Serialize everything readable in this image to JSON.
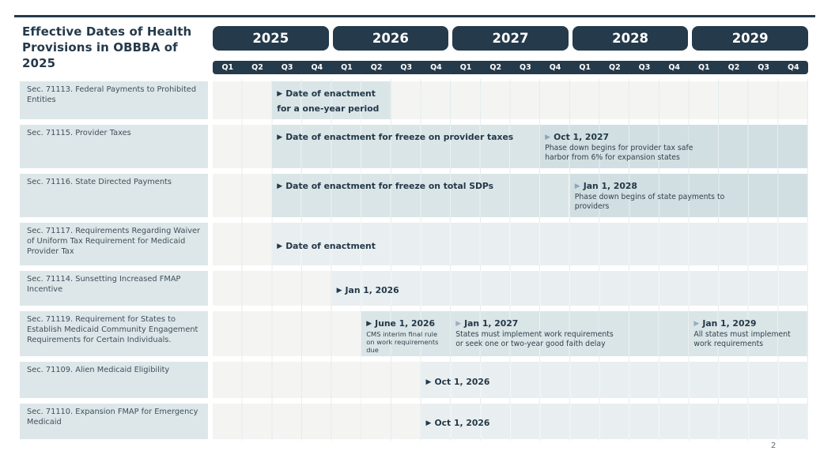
{
  "title": "Effective Dates of Health Provisions in OBBBA of 2025",
  "page_number": "2",
  "colors": {
    "navy": "#253a4b",
    "label_bg": "#dde7e9",
    "band_strong": "#dae5e7",
    "band_medium": "#d1dfe2",
    "band_light": "#e9eff1",
    "arrows": {
      "dark": "#243a4c",
      "light": "#8ca7b7",
      "lavender": "#a4a9c5",
      "steel": "#93afc0"
    }
  },
  "timeline": {
    "years": [
      "2025",
      "2026",
      "2027",
      "2028",
      "2029"
    ],
    "quarters": [
      "Q1",
      "Q2",
      "Q3",
      "Q4"
    ]
  },
  "rows": [
    {
      "label": "Sec. 71113. Federal Payments to Prohibited Entities",
      "milestones": [
        {
          "startQ": 2,
          "endQ": 6,
          "shade": "strong",
          "arrow": "dark",
          "title": "Date of enactment for a one-year period"
        }
      ]
    },
    {
      "label": "Sec. 71115. Provider Taxes",
      "milestones": [
        {
          "startQ": 2,
          "endQ": 11,
          "shade": "strong",
          "arrow": "dark",
          "title": "Date of enactment for freeze on provider taxes"
        },
        {
          "startQ": 11,
          "endQ": 20,
          "shade": "medium",
          "arrow": "light",
          "title": "Oct 1, 2027",
          "desc": "Phase down begins for provider tax safe harbor from 6% for expansion states"
        }
      ]
    },
    {
      "label": "Sec. 71116. State Directed Payments",
      "milestones": [
        {
          "startQ": 2,
          "endQ": 12,
          "shade": "strong",
          "arrow": "dark",
          "title": "Date of enactment for freeze on total SDPs"
        },
        {
          "startQ": 12,
          "endQ": 20,
          "shade": "medium",
          "arrow": "light",
          "title": "Jan 1, 2028",
          "desc": "Phase down begins of state payments to providers"
        }
      ]
    },
    {
      "label": "Sec. 71117. Requirements Regarding Waiver of Uniform Tax Requirement for Medicaid Provider Tax",
      "milestones": [
        {
          "startQ": 2,
          "endQ": 20,
          "shade": "light",
          "arrow": "dark",
          "title": "Date of enactment"
        }
      ]
    },
    {
      "label": "Sec. 71114. Sunsetting Increased FMAP Incentive",
      "milestones": [
        {
          "startQ": 4,
          "endQ": 20,
          "shade": "light",
          "arrow": "dark",
          "title": "Jan 1, 2026"
        }
      ]
    },
    {
      "label": "Sec. 71119. Requirement for States to Establish Medicaid Community Engagement Requirements for Certain Individuals.",
      "milestones": [
        {
          "startQ": 5,
          "endQ": 8,
          "shade": "strong",
          "arrow": "dark",
          "title": "June 1, 2026",
          "desc": "CMS interim final rule on work requirements due",
          "desc_size": "sm"
        },
        {
          "startQ": 8,
          "endQ": 16,
          "shade": "strong",
          "arrow": "lavender",
          "title": "Jan 1, 2027",
          "desc": "States must implement work requirements or seek one or two-year good faith delay"
        },
        {
          "startQ": 16,
          "endQ": 20,
          "shade": "strong",
          "arrow": "steel",
          "title": "Jan 1, 2029",
          "desc": "All states must implement work requirements"
        }
      ]
    },
    {
      "label": "Sec. 71109. Alien Medicaid Eligibility",
      "milestones": [
        {
          "startQ": 7,
          "endQ": 20,
          "shade": "light",
          "arrow": "dark",
          "title": "Oct 1, 2026"
        }
      ]
    },
    {
      "label": "Sec. 71110. Expansion FMAP for Emergency Medicaid",
      "milestones": [
        {
          "startQ": 7,
          "endQ": 20,
          "shade": "light",
          "arrow": "dark",
          "title": "Oct 1, 2026"
        }
      ]
    }
  ]
}
